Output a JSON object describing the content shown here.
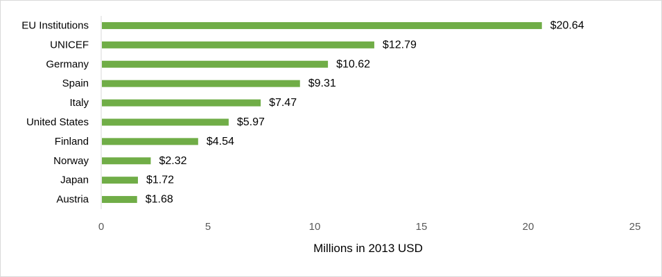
{
  "chart_data": {
    "type": "bar",
    "orientation": "horizontal",
    "title": "",
    "xlabel": "Millions in 2013 USD",
    "ylabel": "",
    "xlim": [
      0,
      25
    ],
    "x_ticks": [
      0,
      5,
      10,
      15,
      20,
      25
    ],
    "grid": false,
    "legend": "none",
    "bar_color": "#70AD47",
    "categories": [
      "EU Institutions",
      "UNICEF",
      "Germany",
      "Spain",
      "Italy",
      "United States",
      "Finland",
      "Norway",
      "Japan",
      "Austria"
    ],
    "values": [
      20.64,
      12.79,
      10.62,
      9.31,
      7.47,
      5.97,
      4.54,
      2.32,
      1.72,
      1.68
    ],
    "value_labels": [
      "$20.64",
      "$12.79",
      "$10.62",
      "$9.31",
      "$7.47",
      "$5.97",
      "$4.54",
      "$2.32",
      "$1.72",
      "$1.68"
    ]
  }
}
